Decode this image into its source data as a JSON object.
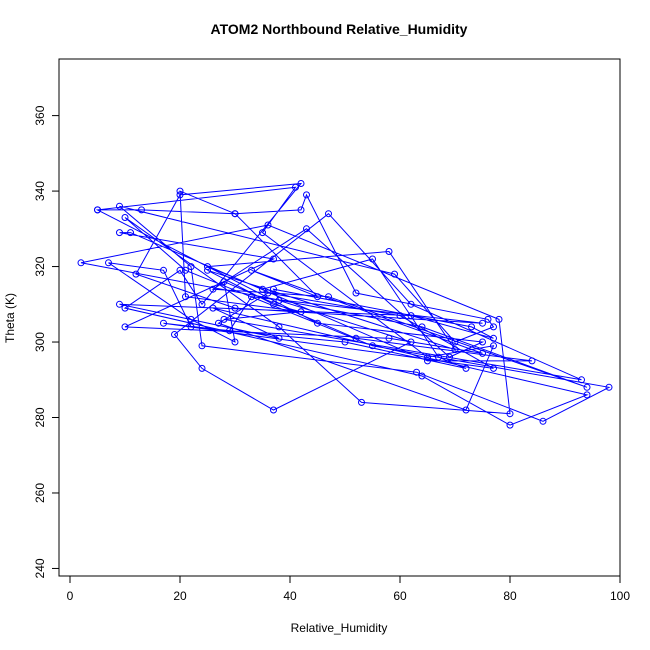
{
  "chart_data": {
    "type": "line",
    "title": "ATOM2 Northbound Relative_Humidity",
    "xlabel": "Relative_Humidity",
    "ylabel": "Theta (K)",
    "xlim": [
      -2,
      100
    ],
    "ylim": [
      238,
      375
    ],
    "xticks": [
      0,
      20,
      40,
      60,
      80,
      100
    ],
    "yticks": [
      240,
      260,
      280,
      300,
      320,
      340,
      360
    ],
    "grid": false,
    "legend": "none",
    "series_color": "#0000ff",
    "marker": "open-circle",
    "series": [
      {
        "x": [
          5,
          13,
          30,
          42,
          43,
          52,
          76,
          77,
          70,
          59,
          9,
          22,
          24,
          63,
          86,
          98,
          55,
          21,
          10,
          38,
          53,
          80,
          78,
          36,
          2,
          64,
          94,
          47,
          26,
          43,
          69,
          75,
          45,
          5,
          41,
          35,
          65,
          77,
          72,
          27,
          36,
          60,
          77,
          17,
          29,
          33,
          75,
          30,
          12,
          20,
          42,
          24,
          20,
          10,
          64,
          80,
          94,
          26,
          38,
          9,
          62,
          77,
          73,
          37,
          38,
          62,
          37,
          24,
          19,
          47,
          62,
          93,
          28,
          42,
          37,
          25,
          70,
          58,
          25,
          35,
          55,
          67,
          72,
          50,
          22,
          17,
          7,
          22,
          30,
          28,
          52,
          84,
          65,
          11,
          9,
          37,
          10,
          58,
          75,
          33,
          45,
          30,
          20,
          21,
          42
        ],
        "y": [
          335,
          335,
          334,
          335,
          339,
          313,
          306,
          304,
          300,
          318,
          336,
          320,
          299,
          292,
          279,
          288,
          299,
          319,
          333,
          304,
          284,
          281,
          306,
          331,
          321,
          304,
          288,
          312,
          314,
          330,
          296,
          300,
          305,
          335,
          341,
          329,
          296,
          299,
          282,
          305,
          313,
          307,
          293,
          305,
          303,
          312,
          305,
          309,
          318,
          339,
          342,
          310,
          319,
          309,
          291,
          278,
          286,
          309,
          301,
          310,
          307,
          301,
          304,
          314,
          311,
          300,
          282,
          293,
          302,
          334,
          310,
          290,
          306,
          308,
          310,
          319,
          298,
          324,
          320,
          314,
          322,
          296,
          293,
          300,
          304,
          319,
          321,
          306,
          300,
          316,
          301,
          295,
          295,
          329,
          329,
          322,
          304,
          301,
          297,
          319,
          312,
          334,
          340,
          312,
          308
        ]
      }
    ]
  }
}
